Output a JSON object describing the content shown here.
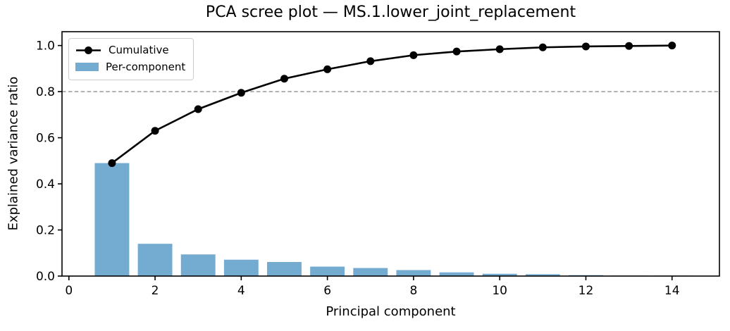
{
  "chart_data": {
    "type": "bar+line",
    "title": "PCA scree plot — MS.1.lower_joint_replacement",
    "xlabel": "Principal component",
    "ylabel": "Explained variance ratio",
    "x": [
      1,
      2,
      3,
      4,
      5,
      6,
      7,
      8,
      9,
      10,
      11,
      12,
      13,
      14
    ],
    "series": [
      {
        "name": "Cumulative",
        "type": "line",
        "values": [
          0.49,
          0.63,
          0.724,
          0.795,
          0.856,
          0.897,
          0.932,
          0.958,
          0.974,
          0.984,
          0.992,
          0.996,
          0.998,
          1.0
        ]
      },
      {
        "name": "Per-component",
        "type": "bar",
        "values": [
          0.49,
          0.14,
          0.094,
          0.071,
          0.061,
          0.041,
          0.035,
          0.026,
          0.016,
          0.01,
          0.008,
          0.004,
          0.002,
          0.002
        ]
      }
    ],
    "threshold": 0.8,
    "xticks": [
      0,
      2,
      4,
      6,
      8,
      10,
      12,
      14
    ],
    "yticks": [
      "0.0",
      "0.2",
      "0.4",
      "0.6",
      "0.8",
      "1.0"
    ],
    "xlim": [
      -0.16,
      15.1
    ],
    "ylim": [
      0,
      1.06
    ],
    "bar_width": 0.8,
    "legend_position": "upper left",
    "grid": false,
    "colors": {
      "bar": "#74abd1",
      "line": "#000000",
      "marker": "#000000",
      "threshold": "#9a9a9a",
      "axis": "#000000"
    }
  }
}
